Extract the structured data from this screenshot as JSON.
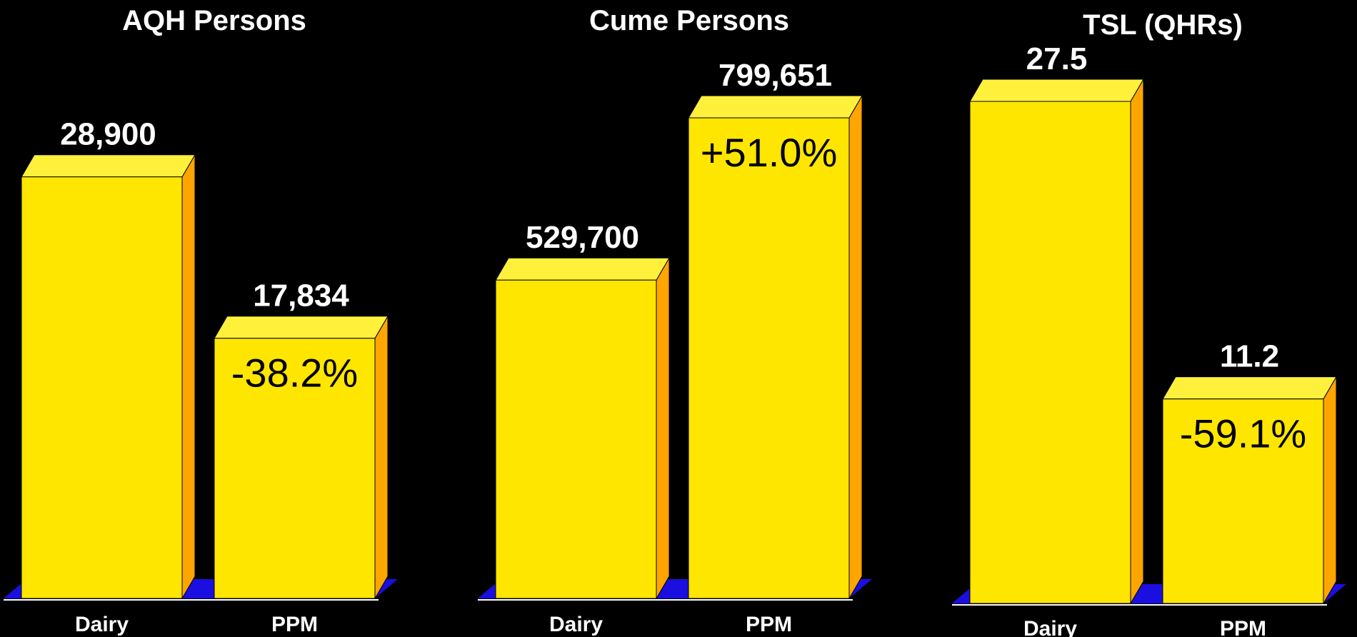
{
  "colors": {
    "background": "#000000",
    "bar_front": "#FFE600",
    "bar_top": "#FFF03C",
    "bar_side": "#FFA500",
    "floor": "#1A0FE0",
    "baseline": "#FFFFFF",
    "text": "#FFFFFF",
    "percent_text": "#000000"
  },
  "chart_data": [
    {
      "type": "bar",
      "title": "AQH Persons",
      "categories": [
        "Dairy",
        "PPM"
      ],
      "values": [
        28900,
        17834
      ],
      "value_labels": [
        "28,900",
        "17,834"
      ],
      "change_label": "-38.2%",
      "ylim": [
        0,
        32900
      ],
      "grid": false
    },
    {
      "type": "bar",
      "title": "Cume Persons",
      "categories": [
        "Dairy",
        "PPM"
      ],
      "values": [
        529700,
        799651
      ],
      "value_labels": [
        "529,700",
        "799,651"
      ],
      "change_label": "+51.0%",
      "ylim": [
        0,
        808000
      ],
      "grid": false
    },
    {
      "type": "bar",
      "title": "TSL (QHRs)",
      "categories": [
        "Dairy",
        "PPM"
      ],
      "values": [
        27.5,
        11.2
      ],
      "value_labels": [
        "27.5",
        "11.2"
      ],
      "change_label": "-59.1%",
      "ylim": [
        0,
        27.5
      ],
      "grid": false
    }
  ]
}
